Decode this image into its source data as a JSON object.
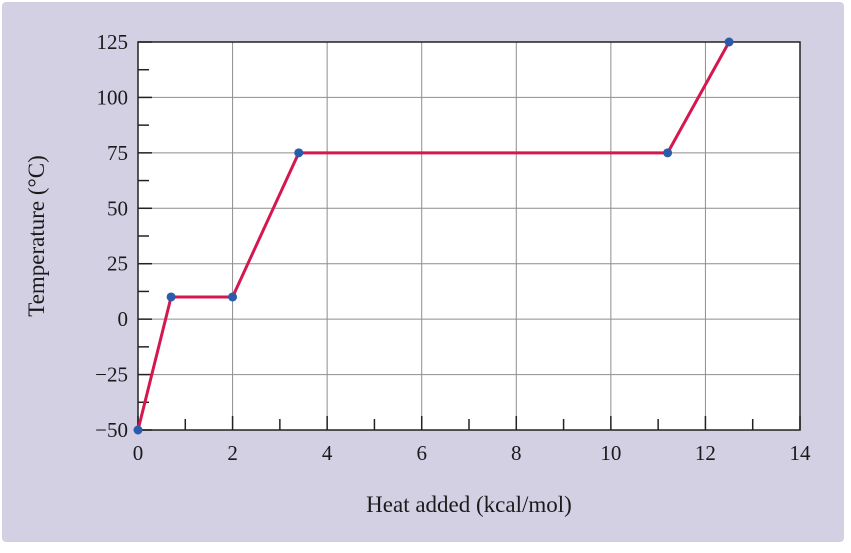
{
  "chart_data": {
    "type": "line",
    "xlabel": "Heat added (kcal/mol)",
    "ylabel": "Temperature (°C)",
    "xlim": [
      0,
      14
    ],
    "ylim": [
      -50,
      125
    ],
    "x_ticks": [
      0,
      2,
      4,
      6,
      8,
      10,
      12,
      14
    ],
    "x_tick_labels": [
      "0",
      "2",
      "4",
      "6",
      "8",
      "10",
      "12",
      "14"
    ],
    "y_ticks": [
      125,
      100,
      75,
      50,
      25,
      0,
      -25,
      -50
    ],
    "y_tick_labels": [
      "125",
      "100",
      "75",
      "50",
      "25",
      "0",
      "−25",
      "−50"
    ],
    "x_minor_step": 1,
    "y_minor_step": 12.5,
    "grid": true,
    "series": [
      {
        "x": [
          0,
          0.7,
          2.0,
          3.4,
          11.2,
          12.5
        ],
        "y": [
          -50,
          10,
          10,
          75,
          75,
          125
        ]
      }
    ],
    "colors": {
      "background": "#d3d0e4",
      "plot_area": "#ffffff",
      "grid": "#8e8e8e",
      "line": "#d5174f",
      "marker": "#2a5cab",
      "axis": "#222222"
    }
  }
}
